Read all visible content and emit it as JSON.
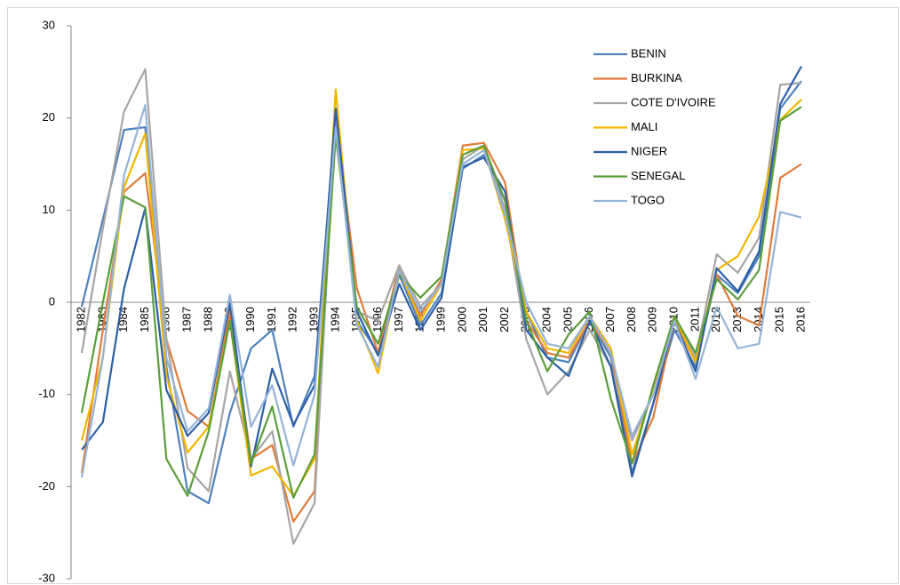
{
  "chart_data": {
    "type": "line",
    "categories": [
      "1982",
      "1983",
      "1984",
      "1985",
      "1986",
      "1987",
      "1988",
      "1989",
      "1990",
      "1991",
      "1992",
      "1993",
      "1994",
      "1995",
      "1996",
      "1997",
      "1998",
      "1999",
      "2000",
      "2001",
      "2002",
      "2003",
      "2004",
      "2005",
      "2006",
      "2007",
      "2008",
      "2009",
      "2010",
      "2011",
      "2012",
      "2013",
      "2014",
      "2015",
      "2016"
    ],
    "ylim": [
      -30,
      30
    ],
    "yticks": [
      -30,
      -20,
      -10,
      0,
      10,
      20,
      30
    ],
    "legend": "upper-right",
    "series": [
      {
        "name": "BENIN",
        "color": "#4f81bd",
        "values": [
          -0.5,
          9,
          18.7,
          19,
          -7,
          -20.5,
          -21.8,
          -12,
          -5,
          -3,
          -13.5,
          -8,
          20,
          -2,
          -5.5,
          3,
          -2.5,
          1,
          14.5,
          16,
          11,
          -1,
          -6,
          -6.5,
          -2,
          -6,
          -18.5,
          -11,
          -3,
          -7,
          3,
          1,
          5,
          21,
          24
        ]
      },
      {
        "name": "BURKINA",
        "color": "#e07b3a",
        "values": [
          -18.5,
          -3,
          12,
          14,
          -4,
          -11.8,
          -13.5,
          -1,
          -17,
          -15.5,
          -23.8,
          -20.5,
          20,
          1.5,
          -5.5,
          4,
          -1.5,
          2.5,
          17,
          17.3,
          13,
          -2,
          -5.5,
          -6,
          -2,
          -5.5,
          -17.5,
          -12.5,
          -2,
          -6.5,
          3,
          -1.5,
          -2.5,
          13.5,
          15
        ]
      },
      {
        "name": "COTE D'IVOIRE",
        "color": "#a5a5a5",
        "values": [
          -5.5,
          8,
          20.7,
          25.3,
          -4,
          -18,
          -20.5,
          -7.5,
          -17,
          -14,
          -26.2,
          -21.8,
          20.5,
          -1,
          -2,
          4,
          -0.5,
          2,
          15.5,
          17,
          10,
          -4,
          -10,
          -7.5,
          -3,
          -7,
          -15,
          -10,
          -1.5,
          -6,
          5.2,
          3.2,
          7,
          23.6,
          23.8
        ]
      },
      {
        "name": "MALI",
        "color": "#f2b600",
        "values": [
          -15,
          -6,
          12.5,
          18.3,
          -8,
          -16.3,
          -13.5,
          -2,
          -18.8,
          -17.8,
          -21,
          -17,
          23.1,
          -2,
          -7.7,
          3.5,
          -2,
          2,
          16.5,
          16.7,
          9,
          -1,
          -5,
          -5.5,
          -1.5,
          -5,
          -16.5,
          -9.5,
          -1.5,
          -6.5,
          3.5,
          5,
          9.3,
          19.8,
          22
        ]
      },
      {
        "name": "NIGER",
        "color": "#2d5fa6",
        "values": [
          -16,
          -13,
          1.5,
          10.2,
          -9.5,
          -14.5,
          -12,
          0,
          -17.8,
          -7.2,
          -13.3,
          -9,
          21,
          -1,
          -5.8,
          2,
          -3,
          0.5,
          14.7,
          15.7,
          12,
          -3,
          -6,
          -8,
          -2,
          -7,
          -18.9,
          -11,
          -2,
          -7.5,
          3.7,
          1.2,
          5.5,
          21.5,
          25.6
        ]
      },
      {
        "name": "SENEGAL",
        "color": "#5a9e3a",
        "values": [
          -12,
          0,
          11.5,
          10.3,
          -17,
          -21,
          -14,
          -2,
          -17.5,
          -11.3,
          -21.2,
          -16.5,
          18,
          -0.5,
          -4.5,
          3,
          0.5,
          2.8,
          16,
          17,
          11,
          -2,
          -7.5,
          -3.5,
          -1,
          -10.5,
          -17.5,
          -9,
          -1.5,
          -5.5,
          2.5,
          0.3,
          3.5,
          19.7,
          21.2
        ]
      },
      {
        "name": "TOGO",
        "color": "#95b3d7",
        "values": [
          -19,
          -6,
          13.8,
          21.4,
          -6,
          -14,
          -11.5,
          0.8,
          -13.5,
          -9,
          -17.7,
          -10,
          19,
          -2.5,
          -7,
          3.5,
          -1,
          2,
          15,
          16.5,
          9.5,
          0,
          -4.5,
          -5,
          -1.5,
          -5.5,
          -14.5,
          -10,
          -2,
          -8.3,
          -0.5,
          -5,
          -4.5,
          9.8,
          9.2
        ]
      }
    ]
  }
}
